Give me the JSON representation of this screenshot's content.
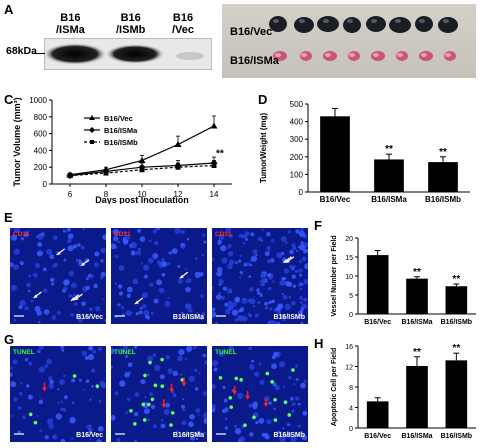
{
  "panels": {
    "A": {
      "label": "A",
      "lanes": [
        "B16\n/ISMa",
        "B16\n/ISMb",
        "B16\n/Vec"
      ],
      "lane_line1": [
        "B16",
        "B16",
        "B16"
      ],
      "lane_line2": [
        "/ISMa",
        "/ISMb",
        "/Vec"
      ],
      "marker": "68kDa"
    },
    "B": {
      "label": "B",
      "row1": "B16/Vec",
      "row2": "B16/ISMa"
    },
    "C": {
      "label": "C"
    },
    "D": {
      "label": "D"
    },
    "E": {
      "label": "E",
      "stain": "CD31",
      "captions": [
        "B16/Vec",
        "B16/ISMa",
        "B16/ISMb"
      ]
    },
    "F": {
      "label": "F"
    },
    "G": {
      "label": "G",
      "stain": "TUNEL",
      "captions": [
        "B16/Vec",
        "B16/ISMa",
        "B16/ISMb"
      ]
    },
    "H": {
      "label": "H"
    }
  },
  "chart_data": [
    {
      "id": "C",
      "type": "line",
      "ylabel": "Tumor Volume (mm³)",
      "xlabel": "Days post Inoculation",
      "x": [
        6,
        8,
        10,
        12,
        14
      ],
      "xticks": [
        "6",
        "8",
        "10",
        "12",
        "14"
      ],
      "yticks": [
        "0",
        "200",
        "400",
        "600",
        "800",
        "1000"
      ],
      "ylim": [
        0,
        1000
      ],
      "series": [
        {
          "name": "B16/Vec",
          "values": [
            110,
            170,
            280,
            470,
            690
          ],
          "errors": [
            20,
            30,
            60,
            100,
            120
          ]
        },
        {
          "name": "B16/ISMa",
          "values": [
            100,
            150,
            200,
            220,
            250
          ],
          "errors": [
            15,
            30,
            50,
            60,
            70
          ]
        },
        {
          "name": "B16/ISMb",
          "values": [
            100,
            130,
            170,
            200,
            220
          ],
          "errors": [
            15,
            25,
            40,
            50,
            60
          ]
        }
      ],
      "annotation": "**"
    },
    {
      "id": "D",
      "type": "bar",
      "ylabel": "TumorWeight (mg)",
      "categories": [
        "B16/Vec",
        "B16/ISMa",
        "B16/ISMb"
      ],
      "values": [
        430,
        185,
        170
      ],
      "errors": [
        45,
        30,
        30
      ],
      "ylim": [
        0,
        500
      ],
      "yticks": [
        "0",
        "100",
        "200",
        "300",
        "400",
        "500"
      ],
      "sig": [
        "",
        "**",
        "**"
      ]
    },
    {
      "id": "F",
      "type": "bar",
      "ylabel": "Vessel Number per Field",
      "categories": [
        "B16/Vec",
        "B16/ISMa",
        "B16/ISMb"
      ],
      "values": [
        15.5,
        9.3,
        7.3
      ],
      "errors": [
        1.2,
        0.5,
        0.6
      ],
      "ylim": [
        0,
        20
      ],
      "yticks": [
        "0",
        "5",
        "10",
        "15",
        "20"
      ],
      "sig": [
        "",
        "**",
        "**"
      ]
    },
    {
      "id": "H",
      "type": "bar",
      "ylabel": "Apoptotic Cell per Field",
      "categories": [
        "B16/Vec",
        "B16/ISMa",
        "B16/ISMb"
      ],
      "values": [
        5.2,
        12.1,
        13.2
      ],
      "errors": [
        0.7,
        1.8,
        1.4
      ],
      "ylim": [
        0,
        16
      ],
      "yticks": [
        "0",
        "4",
        "8",
        "12",
        "16"
      ],
      "sig": [
        "",
        "**",
        "**"
      ]
    }
  ]
}
